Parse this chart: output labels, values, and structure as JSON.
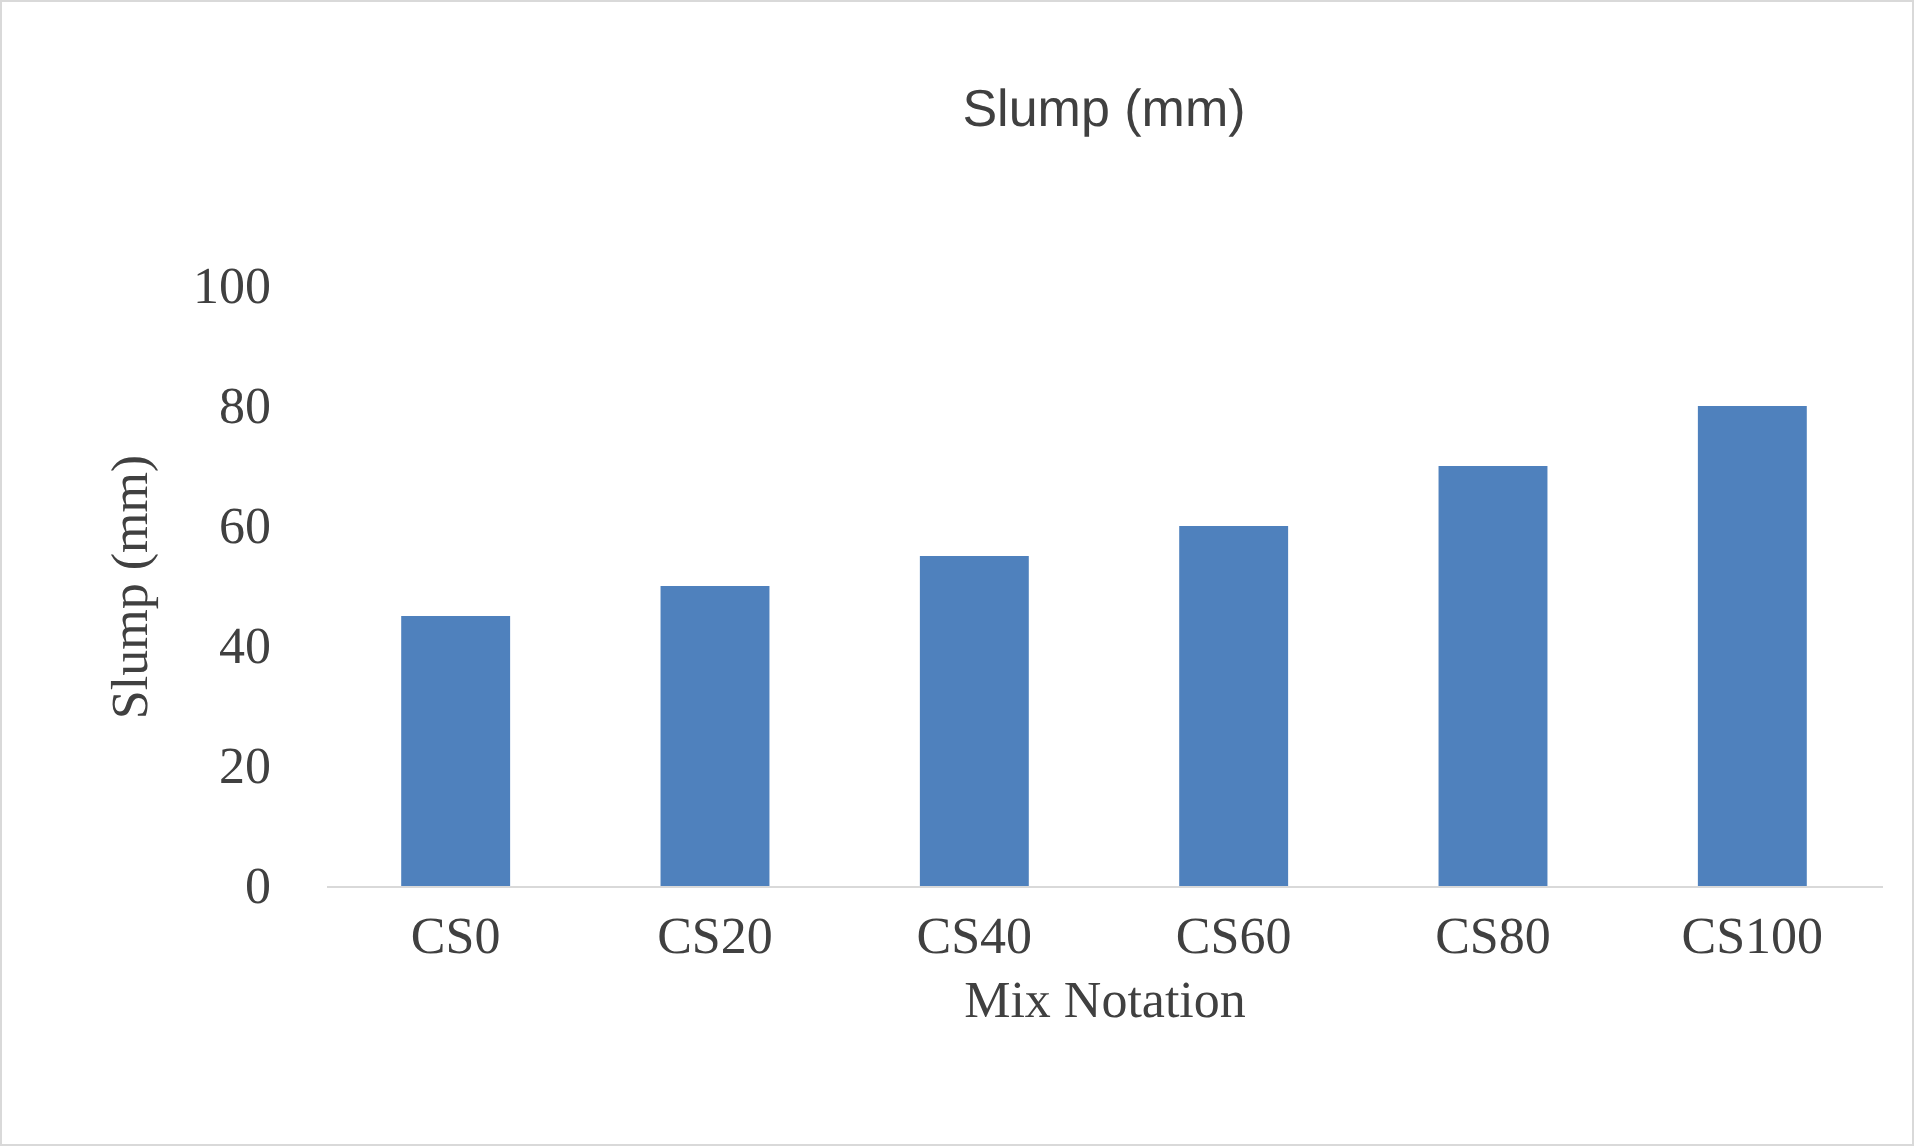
{
  "chart_data": {
    "type": "bar",
    "title": "Slump (mm)",
    "xlabel": "Mix Notation",
    "ylabel": "Slump (mm)",
    "categories": [
      "CS0",
      "CS20",
      "CS40",
      "CS60",
      "CS80",
      "CS100"
    ],
    "values": [
      45,
      50,
      55,
      60,
      70,
      80
    ],
    "color": "#4f81bd",
    "ylim": [
      0,
      100
    ],
    "yticks": [
      0,
      20,
      40,
      60,
      80,
      100
    ],
    "grid": false
  }
}
